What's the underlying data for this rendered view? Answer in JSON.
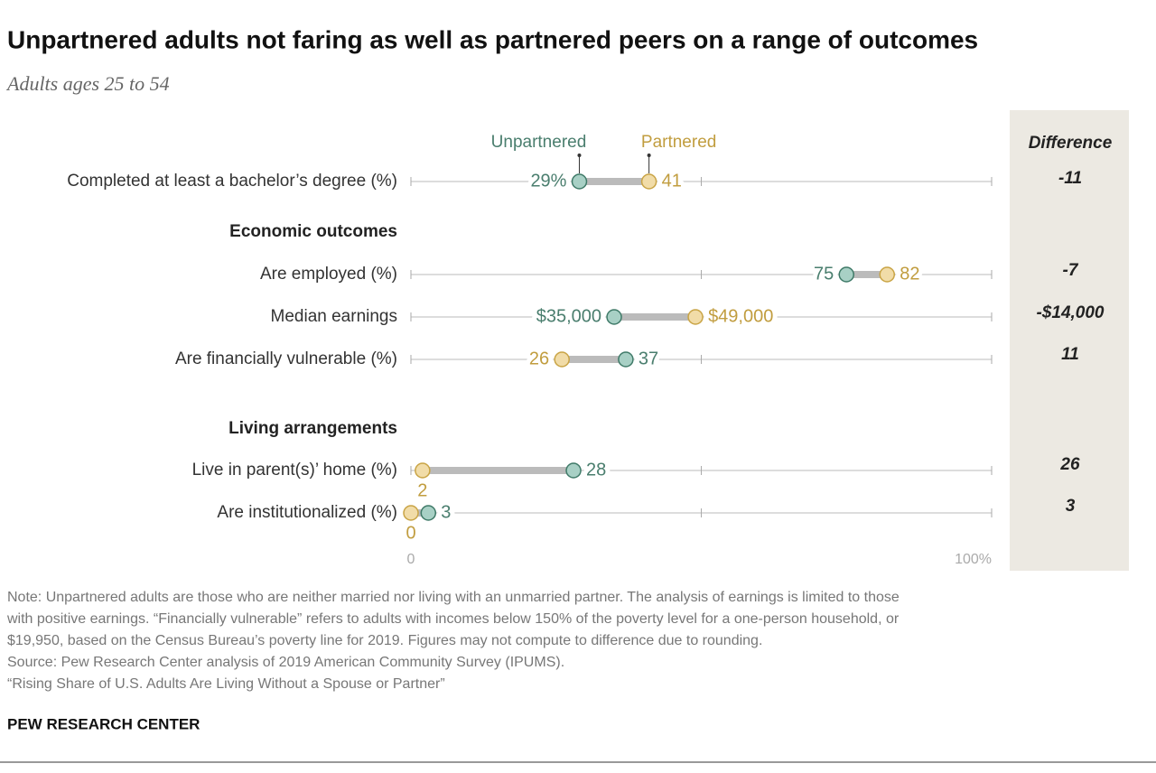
{
  "chart_data": {
    "type": "dot",
    "title": "Unpartnered adults not faring as well as partnered peers on a range of outcomes",
    "subtitle": "Adults ages 25 to 54",
    "categories": [
      "Completed at least a bachelor’s degree (%)",
      "Are employed (%)",
      "Median earnings",
      "Are financially vulnerable (%)",
      "Live in parent(s)’ home (%)",
      "Are institutionalized (%)"
    ],
    "groups": [
      "Economic outcomes",
      "Living arrangements"
    ],
    "category_axis": [
      "x",
      "x",
      "x2",
      "x",
      "x",
      "x"
    ],
    "series": [
      {
        "name": "Unpartnered",
        "color": "#a8d0c5",
        "values": [
          29,
          75,
          35000,
          37,
          28,
          3
        ],
        "value_labels": [
          "29%",
          "75",
          "$35,000",
          "37",
          "28",
          "3"
        ]
      },
      {
        "name": "Partnered",
        "color": "#f1dca8",
        "values": [
          41,
          82,
          49000,
          26,
          2,
          0
        ],
        "value_labels": [
          "41",
          "82",
          "$49,000",
          "26",
          "2",
          "0"
        ]
      }
    ],
    "differences": {
      "title": "Difference",
      "values": [
        -11,
        -7,
        -14000,
        11,
        26,
        3
      ],
      "value_labels": [
        "-11",
        "-7",
        "-$14,000",
        "11",
        "26",
        "3"
      ]
    },
    "xlim": [
      0,
      100
    ],
    "x2lim": [
      0,
      100000
    ],
    "xticks": [
      0,
      {
        "value": 100,
        "label": "100%"
      }
    ],
    "minor_xticks": [
      50
    ],
    "notes": [
      "Note: Unpartnered adults are those who are neither married nor living with an unmarried partner. The analysis of earnings is limited to those",
      "with positive earnings. “Financially vulnerable” refers to adults with incomes below 150% of the poverty level for a one-person household, or",
      "$19,950, based on the Census Bureau’s poverty line for 2019. Figures may not compute to difference due to rounding.",
      "Source: Pew Research Center analysis of 2019 American Community Survey (IPUMS).",
      "“Rising Share of U.S. Adults Are Living Without a Spouse or Partner”"
    ],
    "credit": "PEW RESEARCH CENTER"
  }
}
